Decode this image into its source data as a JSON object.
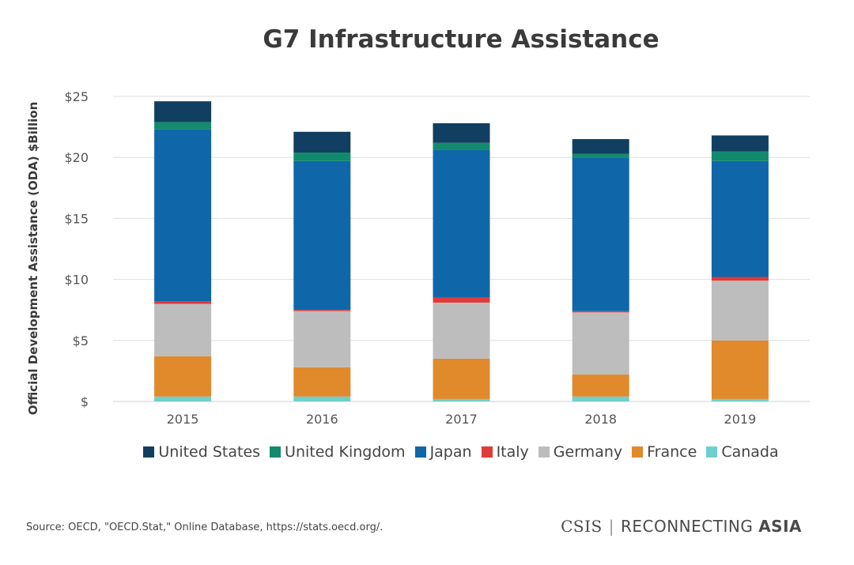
{
  "chart_data": {
    "type": "bar",
    "stacked": true,
    "title": "G7 Infrastructure Assistance",
    "xlabel": "",
    "ylabel": "Official Development Assistance (ODA) $Billion",
    "ylim": [
      0,
      25
    ],
    "grid": true,
    "legend_position": "bottom",
    "categories": [
      "2015",
      "2016",
      "2017",
      "2018",
      "2019"
    ],
    "y_ticks": [
      {
        "value": 0,
        "label": "$"
      },
      {
        "value": 5,
        "label": "$5"
      },
      {
        "value": 10,
        "label": "$10"
      },
      {
        "value": 15,
        "label": "$15"
      },
      {
        "value": 20,
        "label": "$20"
      },
      {
        "value": 25,
        "label": "$25"
      }
    ],
    "series": [
      {
        "name": "Canada",
        "color": "#6ecfcf",
        "values": [
          0.4,
          0.4,
          0.2,
          0.4,
          0.2
        ]
      },
      {
        "name": "France",
        "color": "#e08a2c",
        "values": [
          3.3,
          2.4,
          3.3,
          1.8,
          4.8
        ]
      },
      {
        "name": "Germany",
        "color": "#bdbdbd",
        "values": [
          4.3,
          4.6,
          4.6,
          5.1,
          4.9
        ]
      },
      {
        "name": "Italy",
        "color": "#e03a3a",
        "values": [
          0.2,
          0.1,
          0.4,
          0.1,
          0.3
        ]
      },
      {
        "name": "Japan",
        "color": "#0f66a8",
        "values": [
          14.1,
          12.2,
          12.1,
          12.6,
          9.5
        ]
      },
      {
        "name": "United Kingdom",
        "color": "#128a6c",
        "values": [
          0.6,
          0.7,
          0.6,
          0.3,
          0.8
        ]
      },
      {
        "name": "United States",
        "color": "#113f61",
        "values": [
          1.7,
          1.7,
          1.6,
          1.2,
          1.3
        ]
      }
    ],
    "legend_order": [
      "United States",
      "United Kingdom",
      "Japan",
      "Italy",
      "Germany",
      "France",
      "Canada"
    ]
  },
  "footer": {
    "source": "Source: OECD, \"OECD.Stat,\" Online Database, https://stats.oecd.org/.",
    "brand_csis": "CSIS",
    "brand_separator": "|",
    "brand_reconnecting": "RECONNECTING",
    "brand_asia": "ASIA"
  }
}
